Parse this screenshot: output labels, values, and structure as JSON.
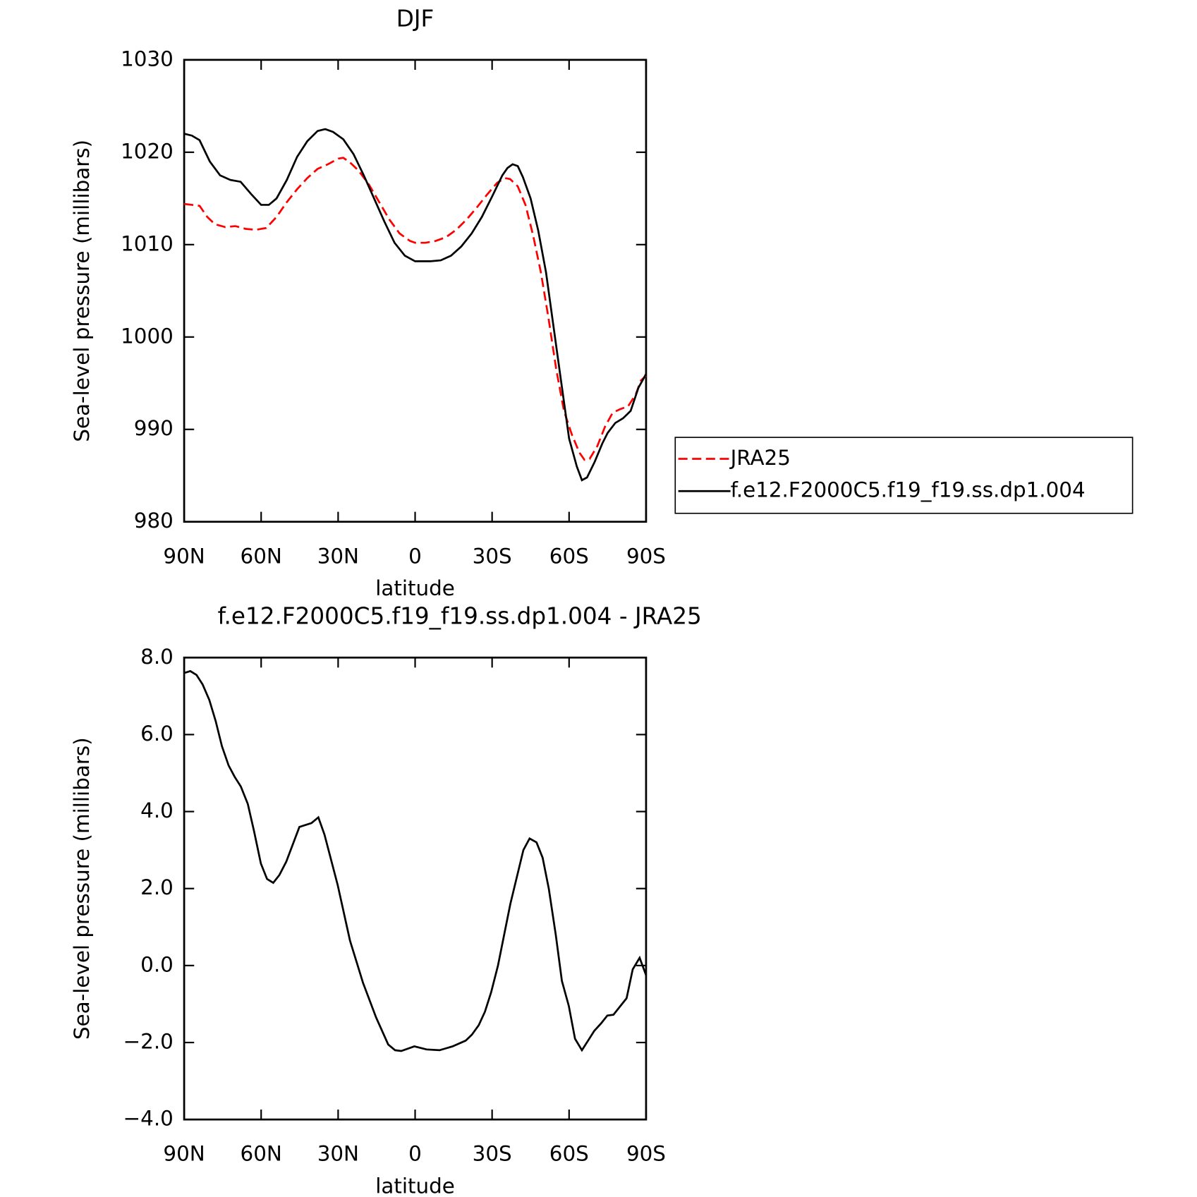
{
  "chart_data": [
    {
      "type": "line",
      "title": "DJF",
      "xlabel": "latitude",
      "ylabel": "Sea-level pressure (millibars)",
      "xlim": [
        90,
        -90
      ],
      "xticks": [
        {
          "value": 90,
          "label": "90N"
        },
        {
          "value": 60,
          "label": "60N"
        },
        {
          "value": 30,
          "label": "30N"
        },
        0,
        {
          "value": -30,
          "label": "30S"
        },
        {
          "value": -60,
          "label": "60S"
        },
        {
          "value": -90,
          "label": "90S"
        }
      ],
      "ylim": [
        980,
        1030
      ],
      "yticks": [
        980,
        990,
        1000,
        1010,
        1020,
        1030
      ],
      "series": [
        {
          "name": "JRA25",
          "color": "#ff0000",
          "dash": true,
          "x": [
            90,
            84,
            81,
            78,
            74,
            70,
            66,
            62,
            58,
            54,
            50,
            46,
            42,
            38,
            34,
            30,
            28,
            25,
            22,
            18,
            14,
            10,
            6,
            2,
            0,
            -4,
            -8,
            -12,
            -16,
            -20,
            -24,
            -28,
            -32,
            -35,
            -37,
            -40,
            -43,
            -46,
            -49,
            -52,
            -55,
            -58,
            -61,
            -64,
            -66,
            -68,
            -71,
            -74,
            -77,
            -80,
            -83,
            -86,
            -88,
            -90
          ],
          "values": [
            1014.4,
            1014.2,
            1013,
            1012.2,
            1011.9,
            1012,
            1011.7,
            1011.6,
            1011.8,
            1013,
            1014.6,
            1016,
            1017.2,
            1018.2,
            1018.7,
            1019.3,
            1019.4,
            1018.8,
            1018,
            1016.5,
            1014.6,
            1012.7,
            1011.2,
            1010.4,
            1010.2,
            1010.2,
            1010.4,
            1010.8,
            1011.6,
            1012.7,
            1014,
            1015.4,
            1016.7,
            1017.2,
            1017.1,
            1016.3,
            1014.3,
            1011,
            1007,
            1002,
            996.5,
            992,
            989.5,
            987.5,
            986.7,
            986.8,
            988.2,
            990.3,
            991.8,
            992.2,
            992.5,
            993.8,
            995.3,
            995.8
          ]
        },
        {
          "name": "f.e12.F2000C5.f19_f19.ss.dp1.004",
          "color": "#000000",
          "dash": false,
          "x": [
            90,
            87,
            84,
            80,
            76,
            72,
            68,
            64,
            60,
            57,
            54,
            50,
            46,
            42,
            38,
            35,
            32,
            28,
            24,
            20,
            16,
            12,
            8,
            4,
            0,
            -3,
            -6,
            -10,
            -14,
            -18,
            -22,
            -26,
            -30,
            -34,
            -36,
            -38,
            -40,
            -42,
            -45,
            -48,
            -51,
            -54,
            -57,
            -60,
            -63,
            -65,
            -67,
            -70,
            -73,
            -75,
            -78,
            -81,
            -84,
            -87,
            -90
          ],
          "values": [
            1022,
            1021.8,
            1021.3,
            1019,
            1017.5,
            1017,
            1016.8,
            1015.5,
            1014.3,
            1014.3,
            1015,
            1017,
            1019.5,
            1021.2,
            1022.3,
            1022.5,
            1022.2,
            1021.4,
            1019.8,
            1017.5,
            1015,
            1012.5,
            1010.2,
            1008.8,
            1008.2,
            1008.2,
            1008.2,
            1008.3,
            1008.8,
            1009.8,
            1011.2,
            1013,
            1015.2,
            1017.5,
            1018.3,
            1018.7,
            1018.5,
            1017.3,
            1015,
            1011.5,
            1007,
            1001,
            995,
            989,
            986,
            984.5,
            984.8,
            986.5,
            988.5,
            989.6,
            990.7,
            991.2,
            992,
            994.5,
            996
          ]
        }
      ]
    },
    {
      "type": "line",
      "title": "f.e12.F2000C5.f19_f19.ss.dp1.004 - JRA25",
      "xlabel": "latitude",
      "ylabel": "Sea-level pressure (millibars)",
      "xlim": [
        90,
        -90
      ],
      "xticks": [
        {
          "value": 90,
          "label": "90N"
        },
        {
          "value": 60,
          "label": "60N"
        },
        {
          "value": 30,
          "label": "30N"
        },
        0,
        {
          "value": -30,
          "label": "30S"
        },
        {
          "value": -60,
          "label": "60S"
        },
        {
          "value": -90,
          "label": "90S"
        }
      ],
      "ylim": [
        -4,
        8
      ],
      "yticks": [
        {
          "value": -4,
          "label": "−4.0"
        },
        {
          "value": -2,
          "label": "−2.0"
        },
        {
          "value": 0,
          "label": "0.0"
        },
        {
          "value": 2,
          "label": "2.0"
        },
        {
          "value": 4,
          "label": "4.0"
        },
        {
          "value": 6,
          "label": "6.0"
        },
        {
          "value": 8,
          "label": "8.0"
        }
      ],
      "series": [
        {
          "color": "#000000",
          "dash": false,
          "x": [
            90,
            87.6,
            85.2,
            82.8,
            80.2,
            77.7,
            75.3,
            72.7,
            70.3,
            67.9,
            65.2,
            62.8,
            60.1,
            57.7,
            55.3,
            52.9,
            50.2,
            45.1,
            40.4,
            37.7,
            35.3,
            30.2,
            25.4,
            20.3,
            15.2,
            10.5,
            7.8,
            5.4,
            0.3,
            -4.5,
            -9.5,
            -14.6,
            -19.7,
            -22.1,
            -24.8,
            -27.2,
            -29.6,
            -32.3,
            -37.1,
            -42.2,
            -44.6,
            -47.3,
            -49.7,
            -52.1,
            -54.8,
            -57.2,
            -59.9,
            -62.3,
            -65,
            -67.4,
            -69.8,
            -72.5,
            -74.9,
            -77.3,
            -80,
            -82.4,
            -84.8,
            -87.5,
            -90
          ],
          "values": [
            7.6,
            7.65,
            7.55,
            7.3,
            6.9,
            6.35,
            5.7,
            5.2,
            4.9,
            4.65,
            4.2,
            3.5,
            2.65,
            2.25,
            2.15,
            2.35,
            2.7,
            3.6,
            3.7,
            3.85,
            3.4,
            2.1,
            0.65,
            -0.45,
            -1.35,
            -2.05,
            -2.2,
            -2.22,
            -2.1,
            -2.18,
            -2.2,
            -2.1,
            -1.95,
            -1.8,
            -1.55,
            -1.2,
            -0.7,
            0,
            1.6,
            3.0,
            3.3,
            3.2,
            2.8,
            2.0,
            0.8,
            -0.4,
            -1.05,
            -1.9,
            -2.2,
            -1.95,
            -1.7,
            -1.5,
            -1.3,
            -1.28,
            -1.05,
            -0.85,
            -0.1,
            0.2,
            -0.25
          ]
        }
      ]
    }
  ]
}
